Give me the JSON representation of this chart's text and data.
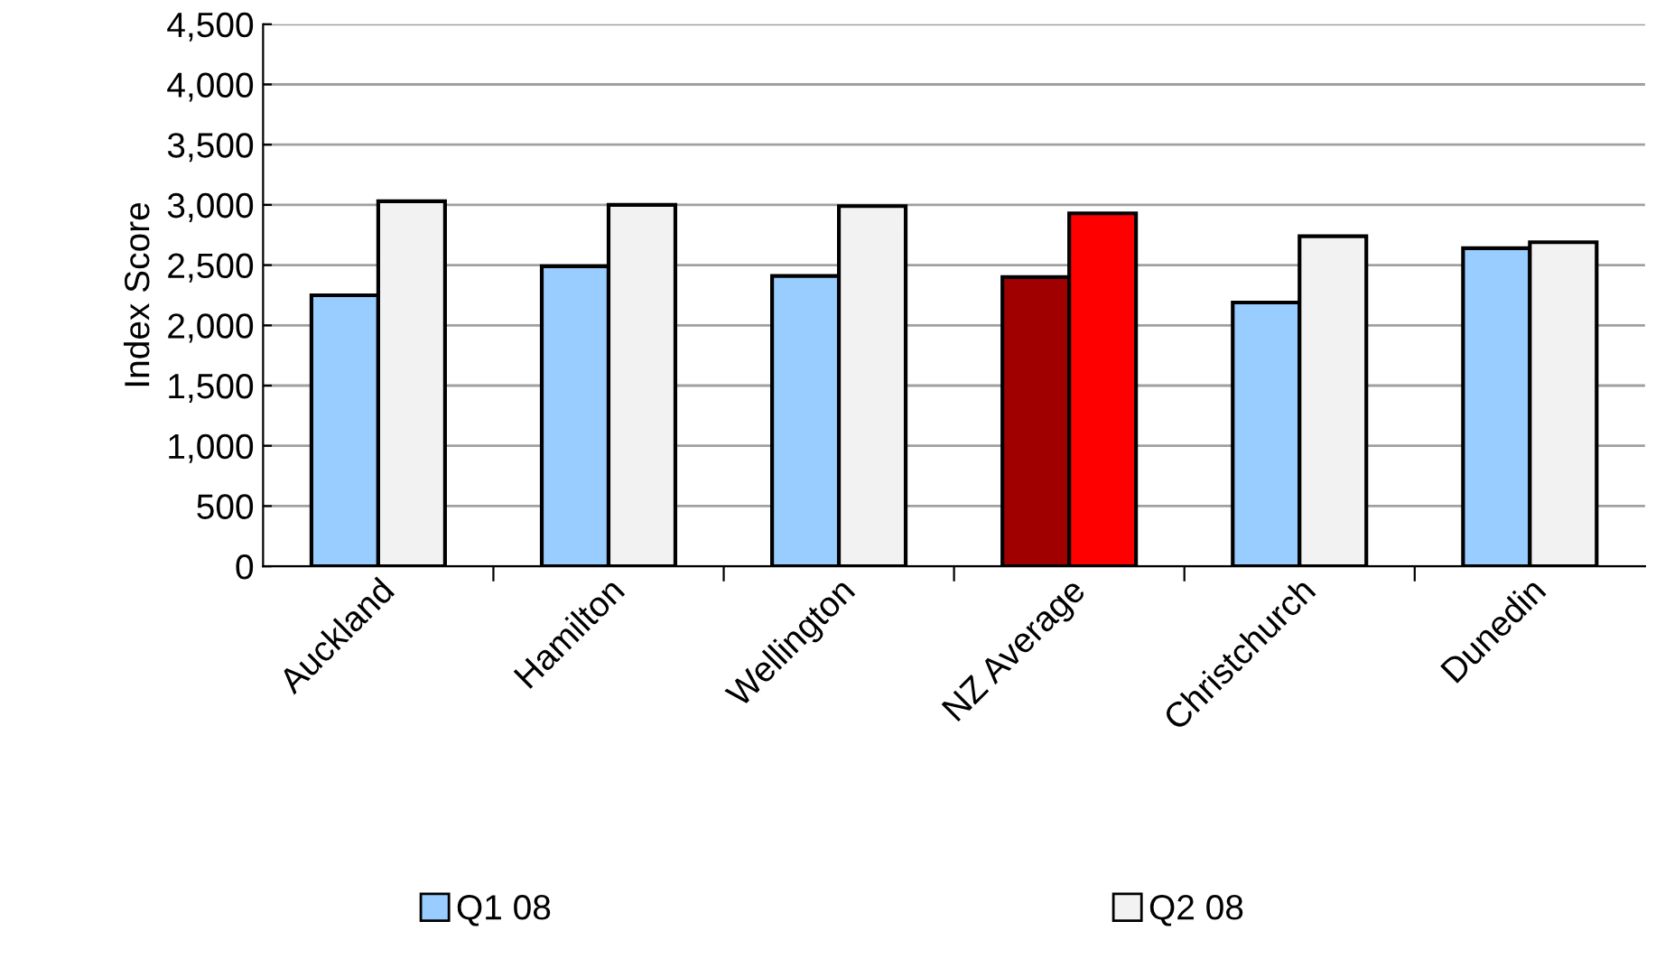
{
  "chart_data": {
    "type": "bar",
    "ylabel": "Index Score",
    "categories": [
      "Auckland",
      "Hamilton",
      "Wellington",
      "NZ Average",
      "Christchurch",
      "Dunedin"
    ],
    "series": [
      {
        "name": "Q1 08",
        "color": "#99ccff",
        "colors": [
          "#99ccff",
          "#99ccff",
          "#99ccff",
          "#a00000",
          "#99ccff",
          "#99ccff"
        ],
        "values": [
          2250,
          2490,
          2410,
          2400,
          2190,
          2640
        ]
      },
      {
        "name": "Q2 08",
        "color": "#f2f2f2",
        "colors": [
          "#f2f2f2",
          "#f2f2f2",
          "#f2f2f2",
          "#ff0000",
          "#f2f2f2",
          "#f2f2f2"
        ],
        "values": [
          3030,
          3000,
          2990,
          2930,
          2740,
          2690
        ]
      }
    ],
    "ylim": [
      0,
      4500
    ],
    "yticks": [
      {
        "value": 0,
        "label": "0"
      },
      {
        "value": 500,
        "label": "500"
      },
      {
        "value": 1000,
        "label": "1,000"
      },
      {
        "value": 1500,
        "label": "1,500"
      },
      {
        "value": 2000,
        "label": "2,000"
      },
      {
        "value": 2500,
        "label": "2,500"
      },
      {
        "value": 3000,
        "label": "3,000"
      },
      {
        "value": 3500,
        "label": "3,500"
      },
      {
        "value": 4000,
        "label": "4,000"
      },
      {
        "value": 4500,
        "label": "4,500"
      }
    ],
    "grid": "y",
    "legend": "bottom"
  }
}
